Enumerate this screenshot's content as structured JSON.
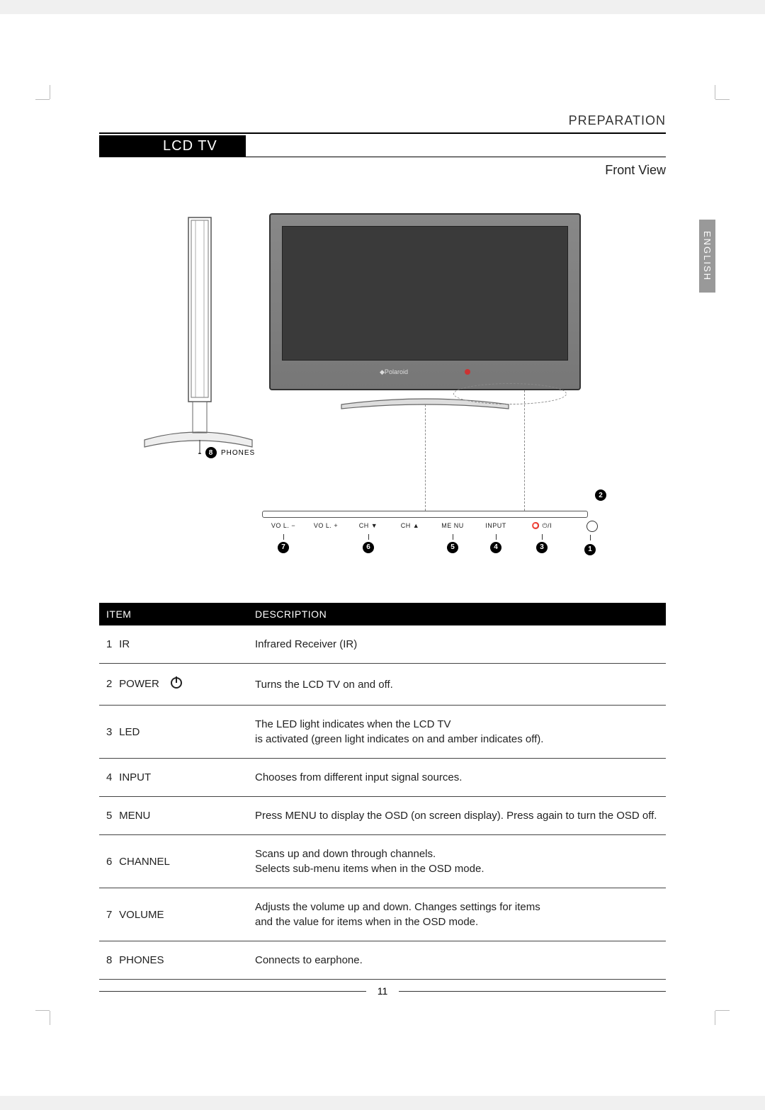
{
  "header": {
    "section": "PREPARATION",
    "tab": "LCD TV",
    "subtitle": "Front View"
  },
  "language_tab": "ENGLISH",
  "figure": {
    "phones_label": "PHONES",
    "phones_callout_num": "8",
    "brand": "◆Polaroid",
    "callout2_num": "2",
    "panel": {
      "labels": [
        "VO L. −",
        "VO L. +",
        "CH ▼",
        "CH ▲",
        "ME NU",
        "INPUT",
        "⭕ ⏻/I"
      ],
      "widths": [
        60,
        60,
        60,
        58,
        62,
        60,
        70
      ],
      "numbers": [
        "7",
        "",
        "6",
        "",
        "5",
        "4",
        "3"
      ],
      "num1": "1"
    }
  },
  "table": {
    "header_item": "ITEM",
    "header_desc": "DESCRIPTION",
    "rows": [
      {
        "num": "1",
        "name": "IR",
        "desc": "Infrared Receiver (IR)",
        "icon": null
      },
      {
        "num": "2",
        "name": "POWER",
        "desc": "Turns the LCD TV on and off.",
        "icon": "power"
      },
      {
        "num": "3",
        "name": "LED",
        "desc": "The LED light indicates when the LCD TV\nis activated (green light indicates on and amber indicates off).",
        "icon": null
      },
      {
        "num": "4",
        "name": " INPUT",
        "desc": "Chooses from different input signal sources.",
        "icon": null
      },
      {
        "num": "5",
        "name": "MENU",
        "desc": "Press MENU to display the OSD (on screen display). Press again to turn the OSD off.",
        "icon": null
      },
      {
        "num": "6",
        "name": "CHANNEL",
        "desc": "Scans up and down through channels.\nSelects sub-menu items when in the OSD mode.",
        "icon": null
      },
      {
        "num": "7",
        "name": "VOLUME",
        "desc": "Adjusts the volume up and down. Changes settings for items\nand the value for items when in the OSD mode.",
        "icon": null
      },
      {
        "num": "8",
        "name": "PHONES",
        "desc": "Connects to earphone.",
        "icon": null
      }
    ]
  },
  "page_number": "11",
  "colors": {
    "black": "#000000",
    "text": "#222222",
    "rule": "#333333",
    "dashed": "#888888",
    "langtab_bg": "#999999",
    "ir_dot": "#cc3333"
  }
}
